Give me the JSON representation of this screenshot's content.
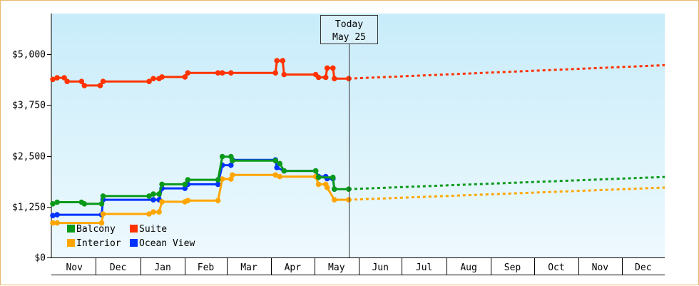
{
  "chart_data": {
    "type": "line",
    "title": "",
    "xlabel": "",
    "ylabel": "",
    "ylim": [
      0,
      6000
    ],
    "yticks": [
      {
        "value": 0,
        "label": "$0"
      },
      {
        "value": 1250,
        "label": "$1,250"
      },
      {
        "value": 2500,
        "label": "$2,500"
      },
      {
        "value": 3750,
        "label": "$3,750"
      },
      {
        "value": 5000,
        "label": "$5,000"
      }
    ],
    "x_domain": [
      "2023-10-31",
      "2024-12-31"
    ],
    "x_months": [
      {
        "label": "Nov",
        "start": "2023-11-01"
      },
      {
        "label": "Dec",
        "start": "2023-12-01"
      },
      {
        "label": "Jan",
        "start": "2024-01-01"
      },
      {
        "label": "Feb",
        "start": "2024-02-01"
      },
      {
        "label": "Mar",
        "start": "2024-03-01"
      },
      {
        "label": "Apr",
        "start": "2024-04-01"
      },
      {
        "label": "May",
        "start": "2024-05-01"
      },
      {
        "label": "Jun",
        "start": "2024-06-01"
      },
      {
        "label": "Jul",
        "start": "2024-07-01"
      },
      {
        "label": "Aug",
        "start": "2024-08-01"
      },
      {
        "label": "Sep",
        "start": "2024-09-01"
      },
      {
        "label": "Oct",
        "start": "2024-10-01"
      },
      {
        "label": "Nov",
        "start": "2024-11-01"
      },
      {
        "label": "Dec",
        "start": "2024-12-01"
      }
    ],
    "today": {
      "line1": "Today",
      "line2": "May 25",
      "date": "2024-05-25"
    },
    "grid": false,
    "legend_position": "bottom-left",
    "series": [
      {
        "name": "Suite",
        "color": "#ff3300",
        "points": [
          [
            "2023-11-01",
            4380
          ],
          [
            "2023-11-04",
            4420
          ],
          [
            "2023-11-09",
            4420
          ],
          [
            "2023-11-11",
            4330
          ],
          [
            "2023-11-21",
            4330
          ],
          [
            "2023-11-23",
            4230
          ],
          [
            "2023-12-04",
            4230
          ],
          [
            "2023-12-06",
            4330
          ],
          [
            "2024-01-07",
            4330
          ],
          [
            "2024-01-10",
            4400
          ],
          [
            "2024-01-14",
            4400
          ],
          [
            "2024-01-16",
            4440
          ],
          [
            "2024-02-01",
            4440
          ],
          [
            "2024-02-03",
            4540
          ],
          [
            "2024-02-24",
            4540
          ],
          [
            "2024-02-27",
            4540
          ],
          [
            "2024-03-04",
            4540
          ],
          [
            "2024-04-04",
            4540
          ],
          [
            "2024-04-05",
            4840
          ],
          [
            "2024-04-09",
            4840
          ],
          [
            "2024-04-10",
            4500
          ],
          [
            "2024-05-02",
            4500
          ],
          [
            "2024-05-04",
            4430
          ],
          [
            "2024-05-09",
            4430
          ],
          [
            "2024-05-10",
            4660
          ],
          [
            "2024-05-14",
            4660
          ],
          [
            "2024-05-15",
            4400
          ],
          [
            "2024-05-25",
            4400
          ]
        ],
        "projection": [
          [
            "2024-05-25",
            4400
          ],
          [
            "2024-12-31",
            4730
          ]
        ]
      },
      {
        "name": "Balcony",
        "color": "#0a9a1a",
        "points": [
          [
            "2023-11-01",
            1320
          ],
          [
            "2023-11-04",
            1360
          ],
          [
            "2023-11-21",
            1360
          ],
          [
            "2023-11-23",
            1320
          ],
          [
            "2023-12-05",
            1320
          ],
          [
            "2023-12-06",
            1510
          ],
          [
            "2024-01-07",
            1510
          ],
          [
            "2024-01-10",
            1560
          ],
          [
            "2024-01-14",
            1560
          ],
          [
            "2024-01-16",
            1800
          ],
          [
            "2024-02-01",
            1800
          ],
          [
            "2024-02-03",
            1910
          ],
          [
            "2024-02-24",
            1910
          ],
          [
            "2024-02-27",
            2480
          ],
          [
            "2024-03-04",
            2480
          ],
          [
            "2024-03-05",
            2380
          ],
          [
            "2024-04-04",
            2380
          ],
          [
            "2024-04-07",
            2310
          ],
          [
            "2024-04-10",
            2130
          ],
          [
            "2024-05-02",
            2130
          ],
          [
            "2024-05-04",
            1970
          ],
          [
            "2024-05-14",
            1970
          ],
          [
            "2024-05-15",
            1680
          ],
          [
            "2024-05-25",
            1680
          ]
        ],
        "projection": [
          [
            "2024-05-25",
            1680
          ],
          [
            "2024-12-31",
            1980
          ]
        ]
      },
      {
        "name": "Interior",
        "color": "#ffa500",
        "points": [
          [
            "2023-11-01",
            850
          ],
          [
            "2023-11-04",
            850
          ],
          [
            "2023-12-05",
            850
          ],
          [
            "2023-12-06",
            1070
          ],
          [
            "2024-01-07",
            1070
          ],
          [
            "2024-01-10",
            1120
          ],
          [
            "2024-01-14",
            1120
          ],
          [
            "2024-01-16",
            1370
          ],
          [
            "2024-02-01",
            1370
          ],
          [
            "2024-02-03",
            1400
          ],
          [
            "2024-02-24",
            1400
          ],
          [
            "2024-02-27",
            1930
          ],
          [
            "2024-03-04",
            1930
          ],
          [
            "2024-03-05",
            2030
          ],
          [
            "2024-04-04",
            2030
          ],
          [
            "2024-04-07",
            1990
          ],
          [
            "2024-05-02",
            1990
          ],
          [
            "2024-05-04",
            1800
          ],
          [
            "2024-05-09",
            1800
          ],
          [
            "2024-05-10",
            1720
          ],
          [
            "2024-05-15",
            1420
          ],
          [
            "2024-05-25",
            1420
          ]
        ],
        "projection": [
          [
            "2024-05-25",
            1420
          ],
          [
            "2024-12-31",
            1720
          ]
        ]
      },
      {
        "name": "Ocean View",
        "color": "#0033ff",
        "points": [
          [
            "2023-11-01",
            1030
          ],
          [
            "2023-11-04",
            1050
          ],
          [
            "2023-12-05",
            1050
          ],
          [
            "2023-12-06",
            1420
          ],
          [
            "2024-01-10",
            1420
          ],
          [
            "2024-01-14",
            1420
          ],
          [
            "2024-01-16",
            1700
          ],
          [
            "2024-02-01",
            1700
          ],
          [
            "2024-02-03",
            1800
          ],
          [
            "2024-02-24",
            1800
          ],
          [
            "2024-02-27",
            2270
          ],
          [
            "2024-03-04",
            2270
          ],
          [
            "2024-03-05",
            2400
          ],
          [
            "2024-04-04",
            2400
          ],
          [
            "2024-04-05",
            2210
          ],
          [
            "2024-04-10",
            2130
          ],
          [
            "2024-05-02",
            2130
          ],
          [
            "2024-05-04",
            1990
          ],
          [
            "2024-05-09",
            1990
          ],
          [
            "2024-05-10",
            1940
          ],
          [
            "2024-05-14",
            1940
          ],
          [
            "2024-05-15",
            1680
          ]
        ]
      }
    ],
    "legend": [
      {
        "name": "Balcony",
        "color": "#0a9a1a"
      },
      {
        "name": "Suite",
        "color": "#ff3300"
      },
      {
        "name": "Interior",
        "color": "#ffa500"
      },
      {
        "name": "Ocean View",
        "color": "#0033ff"
      }
    ]
  }
}
